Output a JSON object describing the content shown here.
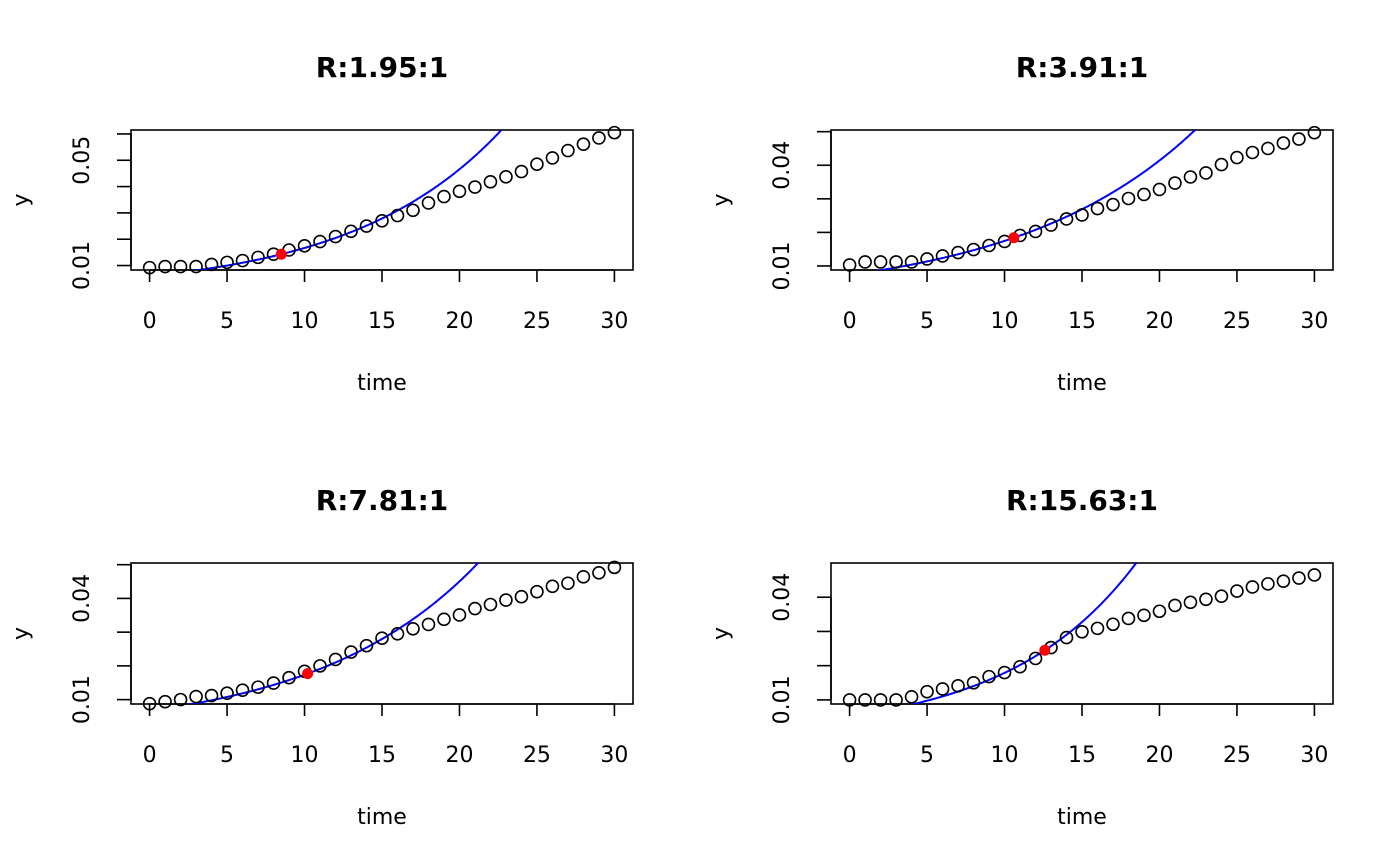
{
  "chart_data": [
    {
      "type": "scatter",
      "title": "R:1.95:1",
      "xlabel": "time",
      "ylabel": "y",
      "xlim": [
        0,
        30
      ],
      "ylim": [
        0.0083,
        0.0615
      ],
      "x_ticks": [
        0,
        5,
        10,
        15,
        20,
        25,
        30
      ],
      "y_ticks": [
        0.01,
        0.02,
        0.03,
        0.04,
        0.05,
        0.06
      ],
      "y_tick_labels": [
        "0.01",
        "",
        "",
        "",
        "0.05",
        ""
      ],
      "series": [
        {
          "name": "observed",
          "style": "open-circle",
          "color": "#000000",
          "x": [
            0,
            1,
            2,
            3,
            4,
            5,
            6,
            7,
            8,
            9,
            10,
            11,
            12,
            13,
            14,
            15,
            16,
            17,
            18,
            19,
            20,
            21,
            22,
            23,
            24,
            25,
            26,
            27,
            28,
            29,
            30
          ],
          "y": [
            0.0092,
            0.0096,
            0.0096,
            0.0096,
            0.0104,
            0.0112,
            0.0119,
            0.0131,
            0.0143,
            0.0159,
            0.0175,
            0.0191,
            0.021,
            0.023,
            0.025,
            0.027,
            0.029,
            0.031,
            0.0338,
            0.0362,
            0.0382,
            0.0398,
            0.0418,
            0.0437,
            0.0457,
            0.0485,
            0.0509,
            0.0537,
            0.0561,
            0.0585,
            0.0605
          ]
        },
        {
          "name": "highlight",
          "style": "filled-circle",
          "color": "#ff0000",
          "x": [
            8.5
          ],
          "y": [
            0.0143
          ]
        },
        {
          "name": "exponential fit",
          "style": "line",
          "color": "#0000ff",
          "x0": 8.5,
          "y0": 0.0143,
          "rate": 0.1027
        }
      ]
    },
    {
      "type": "scatter",
      "title": "R:3.91:1",
      "xlabel": "time",
      "ylabel": "y",
      "xlim": [
        0,
        30
      ],
      "ylim": [
        0.0088,
        0.0505
      ],
      "x_ticks": [
        0,
        5,
        10,
        15,
        20,
        25,
        30
      ],
      "y_ticks": [
        0.01,
        0.02,
        0.03,
        0.04,
        0.05
      ],
      "y_tick_labels": [
        "0.01",
        "",
        "",
        "0.04",
        ""
      ],
      "series": [
        {
          "name": "observed",
          "style": "open-circle",
          "color": "#000000",
          "x": [
            0,
            1,
            2,
            3,
            4,
            5,
            6,
            7,
            8,
            9,
            10,
            11,
            12,
            13,
            14,
            15,
            16,
            17,
            18,
            19,
            20,
            21,
            22,
            23,
            24,
            25,
            26,
            27,
            28,
            29,
            30
          ],
          "y": [
            0.0103,
            0.0112,
            0.0112,
            0.0112,
            0.0112,
            0.0121,
            0.013,
            0.014,
            0.0149,
            0.0161,
            0.0173,
            0.0191,
            0.0203,
            0.0222,
            0.024,
            0.0252,
            0.0271,
            0.0283,
            0.0301,
            0.0313,
            0.0328,
            0.0347,
            0.0365,
            0.0377,
            0.0402,
            0.0423,
            0.0438,
            0.045,
            0.0466,
            0.0478,
            0.0497
          ]
        },
        {
          "name": "highlight",
          "style": "filled-circle",
          "color": "#ff0000",
          "x": [
            10.6
          ],
          "y": [
            0.0184
          ]
        },
        {
          "name": "exponential fit",
          "style": "line",
          "color": "#0000ff",
          "x0": 10.6,
          "y0": 0.0184,
          "rate": 0.0863
        }
      ]
    },
    {
      "type": "scatter",
      "title": "R:7.81:1",
      "xlabel": "time",
      "ylabel": "y",
      "xlim": [
        0,
        30
      ],
      "ylim": [
        0.0087,
        0.0505
      ],
      "x_ticks": [
        0,
        5,
        10,
        15,
        20,
        25,
        30
      ],
      "y_ticks": [
        0.01,
        0.02,
        0.03,
        0.04,
        0.05
      ],
      "y_tick_labels": [
        "0.01",
        "",
        "",
        "0.04",
        ""
      ],
      "series": [
        {
          "name": "observed",
          "style": "open-circle",
          "color": "#000000",
          "x": [
            0,
            1,
            2,
            3,
            4,
            5,
            6,
            7,
            8,
            9,
            10,
            11,
            12,
            13,
            14,
            15,
            16,
            17,
            18,
            19,
            20,
            21,
            22,
            23,
            24,
            25,
            26,
            27,
            28,
            29,
            30
          ],
          "y": [
            0.0088,
            0.0094,
            0.01,
            0.0109,
            0.0112,
            0.0119,
            0.0128,
            0.0137,
            0.0149,
            0.0165,
            0.0184,
            0.02,
            0.0219,
            0.0241,
            0.026,
            0.0282,
            0.0295,
            0.031,
            0.0323,
            0.0338,
            0.0351,
            0.037,
            0.0382,
            0.0395,
            0.0405,
            0.042,
            0.0436,
            0.0445,
            0.0464,
            0.0476,
            0.0492
          ]
        },
        {
          "name": "highlight",
          "style": "filled-circle",
          "color": "#ff0000",
          "x": [
            10.2
          ],
          "y": [
            0.0177
          ]
        },
        {
          "name": "exponential fit",
          "style": "line",
          "color": "#0000ff",
          "x0": 10.2,
          "y0": 0.0177,
          "rate": 0.0953
        }
      ]
    },
    {
      "type": "scatter",
      "title": "R:15.63:1",
      "xlabel": "time",
      "ylabel": "y",
      "xlim": [
        0,
        30
      ],
      "ylim": [
        0.0088,
        0.05
      ],
      "x_ticks": [
        0,
        5,
        10,
        15,
        20,
        25,
        30
      ],
      "y_ticks": [
        0.01,
        0.02,
        0.03,
        0.04
      ],
      "y_tick_labels": [
        "0.01",
        "",
        "",
        "0.04"
      ],
      "series": [
        {
          "name": "observed",
          "style": "open-circle",
          "color": "#000000",
          "x": [
            0,
            1,
            2,
            3,
            4,
            5,
            6,
            7,
            8,
            9,
            10,
            11,
            12,
            13,
            14,
            15,
            16,
            17,
            18,
            19,
            20,
            21,
            22,
            23,
            24,
            25,
            26,
            27,
            28,
            29,
            30
          ],
          "y": [
            0.01,
            0.01,
            0.01,
            0.01,
            0.0109,
            0.0124,
            0.0132,
            0.0141,
            0.015,
            0.0168,
            0.018,
            0.0197,
            0.0221,
            0.0253,
            0.0282,
            0.0299,
            0.0309,
            0.0321,
            0.0338,
            0.0347,
            0.0359,
            0.0376,
            0.0385,
            0.0394,
            0.0403,
            0.0418,
            0.043,
            0.0439,
            0.0447,
            0.0456,
            0.0465
          ]
        },
        {
          "name": "highlight",
          "style": "filled-circle",
          "color": "#ff0000",
          "x": [
            12.6
          ],
          "y": [
            0.0245
          ]
        },
        {
          "name": "exponential fit",
          "style": "line",
          "color": "#0000ff",
          "x0": 12.6,
          "y0": 0.0245,
          "rate": 0.121
        }
      ]
    }
  ]
}
